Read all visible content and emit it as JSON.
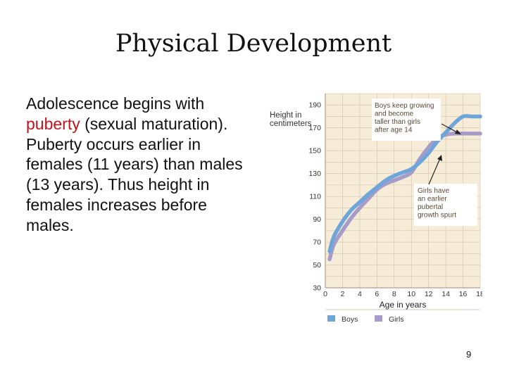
{
  "slide": {
    "title": "Physical Development",
    "body": {
      "before": "Adolescence begins with ",
      "highlight": "puberty",
      "after": " (sexual maturation). Puberty occurs earlier in females (11 years) than males (13 years). Thus height in females increases before males."
    },
    "page_number": "9"
  },
  "colors": {
    "highlight": "#c0141c",
    "boys": "#6fa6da",
    "girls": "#a59cc9",
    "plot_background": "#f7ecd8",
    "callout_text": "#5a4a36"
  },
  "chart_data": {
    "type": "line",
    "ylabel": "Height in centimeters",
    "xlabel": "Age in years",
    "x_ticks": [
      "0",
      "2",
      "4",
      "6",
      "8",
      "10",
      "12",
      "14",
      "16",
      "18"
    ],
    "y_ticks": [
      "30",
      "50",
      "70",
      "90",
      "110",
      "130",
      "150",
      "170",
      "190"
    ],
    "xlim": [
      0,
      18
    ],
    "ylim": [
      30,
      200
    ],
    "grid": true,
    "legend_position": "bottom",
    "series": [
      {
        "name": "Boys",
        "x": [
          0.5,
          1,
          2,
          3,
          4,
          5,
          6,
          7,
          8,
          9,
          10,
          11,
          12,
          13,
          14,
          15,
          16,
          17,
          18
        ],
        "values": [
          62,
          75,
          88,
          98,
          105,
          112,
          118,
          124,
          128,
          131,
          134,
          140,
          148,
          158,
          166,
          174,
          180,
          180,
          180
        ]
      },
      {
        "name": "Girls",
        "x": [
          0.5,
          1,
          2,
          3,
          4,
          5,
          6,
          7,
          8,
          9,
          10,
          11,
          12,
          13,
          14,
          15,
          16,
          17,
          18
        ],
        "values": [
          55,
          68,
          80,
          91,
          100,
          108,
          116,
          121,
          124,
          127,
          131,
          143,
          153,
          161,
          164,
          165,
          165,
          165,
          165
        ]
      }
    ],
    "annotations": [
      {
        "lines": [
          "Boys keep growing",
          "and become",
          "taller than girls",
          "after age 14"
        ]
      },
      {
        "lines": [
          "Girls have",
          "an earlier",
          "pubertal",
          "growth spurt"
        ]
      }
    ]
  }
}
